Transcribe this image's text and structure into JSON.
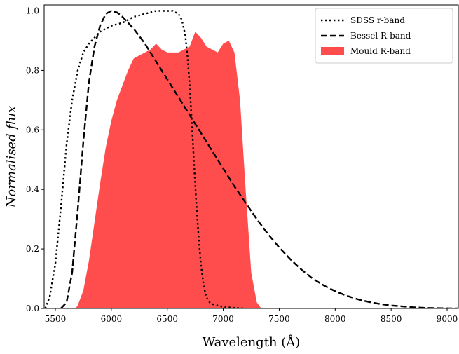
{
  "chart_data": {
    "type": "line",
    "title": "",
    "xlabel": "Wavelength (Å)",
    "ylabel": "Normalised flux",
    "xlim": [
      5400,
      9100
    ],
    "ylim": [
      0,
      1.02
    ],
    "xticks": [
      5500,
      6000,
      6500,
      7000,
      7500,
      8000,
      8500,
      9000
    ],
    "yticks": [
      0.0,
      0.2,
      0.4,
      0.6,
      0.8,
      1.0
    ],
    "xtick_labels": [
      "5500",
      "6000",
      "6500",
      "7000",
      "7500",
      "8000",
      "8500",
      "9000"
    ],
    "ytick_labels": [
      "0.0",
      "0.2",
      "0.4",
      "0.6",
      "0.8",
      "1.0"
    ],
    "grid": false,
    "legend_position": "top-right",
    "series": [
      {
        "name": "SDSS r-band",
        "style": "dotted",
        "kind": "line",
        "color": "#000000",
        "x": [
          5410,
          5450,
          5500,
          5550,
          5600,
          5650,
          5700,
          5750,
          5800,
          5850,
          5900,
          5950,
          6000,
          6100,
          6200,
          6300,
          6400,
          6500,
          6550,
          6600,
          6630,
          6660,
          6680,
          6700,
          6720,
          6740,
          6760,
          6780,
          6800,
          6820,
          6840,
          6860,
          6880,
          6900,
          6950,
          7000,
          7100,
          7200
        ],
        "y": [
          0.0,
          0.04,
          0.15,
          0.34,
          0.55,
          0.7,
          0.8,
          0.86,
          0.89,
          0.91,
          0.93,
          0.94,
          0.95,
          0.96,
          0.98,
          0.99,
          1.0,
          1.0,
          1.0,
          0.99,
          0.97,
          0.92,
          0.85,
          0.75,
          0.62,
          0.48,
          0.35,
          0.24,
          0.15,
          0.09,
          0.05,
          0.03,
          0.02,
          0.015,
          0.01,
          0.005,
          0.002,
          0.0
        ]
      },
      {
        "name": "Bessel R-band",
        "style": "dashed",
        "kind": "line",
        "color": "#000000",
        "x": [
          5550,
          5600,
          5650,
          5700,
          5750,
          5800,
          5850,
          5900,
          5950,
          6000,
          6050,
          6100,
          6200,
          6300,
          6400,
          6500,
          6600,
          6700,
          6800,
          6900,
          7000,
          7100,
          7200,
          7300,
          7400,
          7500,
          7600,
          7700,
          7800,
          7900,
          8000,
          8100,
          8200,
          8300,
          8400,
          8500,
          8600,
          8700,
          8800,
          8900,
          9000,
          9100
        ],
        "y": [
          0.0,
          0.02,
          0.12,
          0.33,
          0.56,
          0.76,
          0.88,
          0.95,
          0.99,
          1.0,
          0.995,
          0.98,
          0.94,
          0.89,
          0.83,
          0.77,
          0.71,
          0.65,
          0.59,
          0.53,
          0.47,
          0.41,
          0.355,
          0.3,
          0.25,
          0.205,
          0.165,
          0.13,
          0.1,
          0.077,
          0.058,
          0.043,
          0.031,
          0.022,
          0.015,
          0.01,
          0.007,
          0.004,
          0.002,
          0.001,
          0.0005,
          0.0
        ]
      },
      {
        "name": "Mould R-band",
        "style": "filled",
        "kind": "area",
        "color": "#ff4d4d",
        "x": [
          5680,
          5700,
          5750,
          5800,
          5850,
          5900,
          5950,
          6000,
          6050,
          6100,
          6150,
          6200,
          6250,
          6300,
          6350,
          6400,
          6450,
          6500,
          6550,
          6600,
          6650,
          6700,
          6750,
          6800,
          6850,
          6900,
          6950,
          7000,
          7050,
          7100,
          7150,
          7200,
          7250,
          7300,
          7340
        ],
        "y": [
          0.0,
          0.01,
          0.06,
          0.16,
          0.29,
          0.42,
          0.54,
          0.63,
          0.7,
          0.75,
          0.8,
          0.84,
          0.85,
          0.86,
          0.87,
          0.89,
          0.87,
          0.86,
          0.86,
          0.86,
          0.87,
          0.88,
          0.93,
          0.91,
          0.88,
          0.87,
          0.86,
          0.89,
          0.9,
          0.86,
          0.7,
          0.4,
          0.12,
          0.02,
          0.0
        ]
      }
    ]
  }
}
